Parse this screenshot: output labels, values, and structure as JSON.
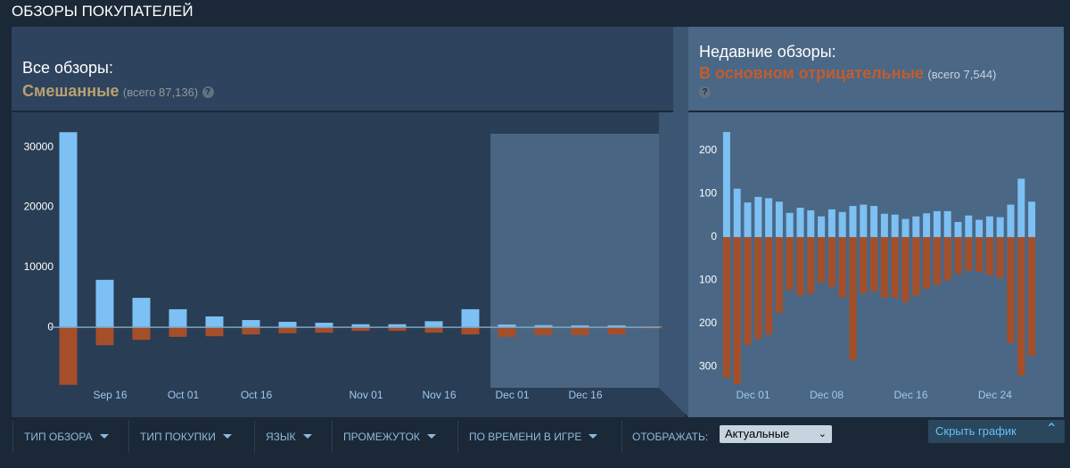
{
  "header": {
    "title": "ОБЗОРЫ ПОКУПАТЕЛЕЙ"
  },
  "summary": {
    "all": {
      "label": "Все обзоры:",
      "rating": "Смешанные",
      "total": "(всего 87,136)"
    },
    "recent": {
      "label": "Недавние обзоры:",
      "rating": "В основном отрицательные",
      "total": "(всего 7,544)"
    },
    "help_icon": "?"
  },
  "chart_data": [
    {
      "type": "bar",
      "categories": [
        null,
        "Sep 16",
        null,
        "Oct 01",
        null,
        "Oct 16",
        null,
        null,
        "Nov 01",
        null,
        "Nov 16",
        null,
        "Dec 01",
        null,
        "Dec 16",
        null,
        null
      ],
      "series": [
        {
          "color": "#7cc0f4",
          "values": [
            32500,
            7900,
            4900,
            3000,
            1800,
            1200,
            900,
            750,
            500,
            500,
            1000,
            3000,
            450,
            350,
            300,
            300,
            100
          ]
        },
        {
          "color": "#a54f2a",
          "values": [
            -9600,
            -3000,
            -2100,
            -1600,
            -1500,
            -1200,
            -1000,
            -900,
            -600,
            -600,
            -900,
            -1200,
            -1600,
            -1300,
            -1300,
            -1200,
            -200
          ]
        }
      ],
      "ylim": [
        -13800,
        34470
      ],
      "yticks": [
        0,
        10000,
        20000,
        30000
      ]
    },
    {
      "type": "bar",
      "categories": [
        null,
        null,
        "Dec 01",
        null,
        null,
        null,
        null,
        null,
        null,
        "Dec 08",
        null,
        null,
        null,
        null,
        null,
        null,
        null,
        "Dec 16",
        null,
        null,
        null,
        null,
        null,
        null,
        null,
        "Dec 24",
        null,
        null,
        null,
        null
      ],
      "series": [
        {
          "color": "#7cc0f4",
          "values": [
            243,
            112,
            80,
            93,
            90,
            82,
            56,
            68,
            62,
            48,
            64,
            58,
            72,
            75,
            72,
            54,
            52,
            42,
            48,
            55,
            60,
            60,
            35,
            50,
            40,
            48,
            46,
            75,
            135,
            82
          ]
        },
        {
          "color": "#a54f2a",
          "values": [
            -325,
            -340,
            -250,
            -235,
            -225,
            -175,
            -122,
            -135,
            -130,
            -105,
            -115,
            -140,
            -285,
            -130,
            -125,
            -140,
            -140,
            -150,
            -135,
            -120,
            -110,
            -100,
            -85,
            -78,
            -80,
            -88,
            -95,
            -245,
            -320,
            -275
          ]
        }
      ],
      "ylim": [
        -400,
        270
      ],
      "yticks": [
        {
          "value": 200,
          "label": "200"
        },
        {
          "value": 100,
          "label": "100"
        },
        0,
        {
          "value": -100,
          "label": "100"
        },
        {
          "value": -200,
          "label": "200"
        },
        {
          "value": -300,
          "label": "300"
        }
      ]
    }
  ],
  "filters": [
    "ТИП ОБЗОРА",
    "ТИП ПОКУПКИ",
    "ЯЗЫК",
    "ПРОМЕЖУТОК",
    "ПО ВРЕМЕНИ В ИГРЕ"
  ],
  "display": {
    "label": "ОТОБРАЖАТЬ:",
    "value": "Актуальные"
  },
  "hide_button": "Скрыть график"
}
